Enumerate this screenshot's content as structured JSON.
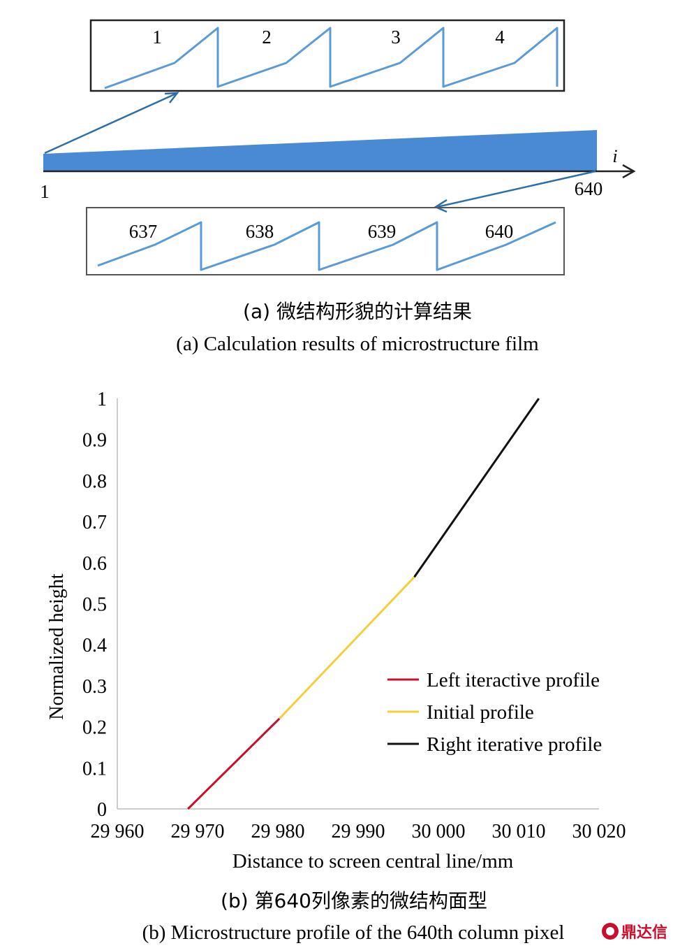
{
  "chart_data": [
    {
      "type": "diagram",
      "caption_cn": "(a) 微结构形貌的计算结果",
      "caption_en": "(a) Calculation results of microstructure film",
      "axis_label": "i",
      "start_label": "1",
      "end_label": "640",
      "top_inset_labels": [
        "1",
        "2",
        "3",
        "4"
      ],
      "bottom_inset_labels": [
        "637",
        "638",
        "639",
        "640"
      ],
      "colors": {
        "film": "#4a8ad4",
        "profile": "#5b9bd5",
        "frame": "#222222"
      }
    },
    {
      "type": "line",
      "caption_cn": "(b) 第640列像素的微结构面型",
      "caption_en": "(b) Microstructure profile of the 640th column pixel",
      "xlabel": "Distance to screen central line/mm",
      "ylabel": "Normalized height",
      "xlim": [
        29960,
        30020
      ],
      "ylim": [
        0,
        1
      ],
      "xticks": [
        29960,
        29970,
        29980,
        29990,
        30000,
        30010,
        30020
      ],
      "xtick_labels": [
        "29 960",
        "29 970",
        "29 980",
        "29 990",
        "30 000",
        "30 010",
        "30 020"
      ],
      "yticks": [
        0,
        0.1,
        0.2,
        0.3,
        0.4,
        0.5,
        0.6,
        0.7,
        0.8,
        0.9,
        1
      ],
      "ytick_labels": [
        "0",
        "0.1",
        "0.2",
        "0.3",
        "0.4",
        "0.5",
        "0.6",
        "0.7",
        "0.8",
        "0.9",
        "1"
      ],
      "grid": false,
      "legend_position": "lower-right",
      "series": [
        {
          "name": "Left iteractive profile",
          "color": "#c8102e",
          "x": [
            29968.8,
            29980.2
          ],
          "y": [
            0,
            0.22
          ]
        },
        {
          "name": "Initial profile",
          "color": "#f2d03b",
          "x": [
            29980.2,
            29997.0
          ],
          "y": [
            0.22,
            0.565
          ]
        },
        {
          "name": "Right iterative profile",
          "color": "#111111",
          "x": [
            29997.0,
            30012.5
          ],
          "y": [
            0.565,
            1.0
          ]
        }
      ]
    }
  ],
  "watermark": {
    "text": "鼎达信",
    "icon": "seal-icon"
  }
}
